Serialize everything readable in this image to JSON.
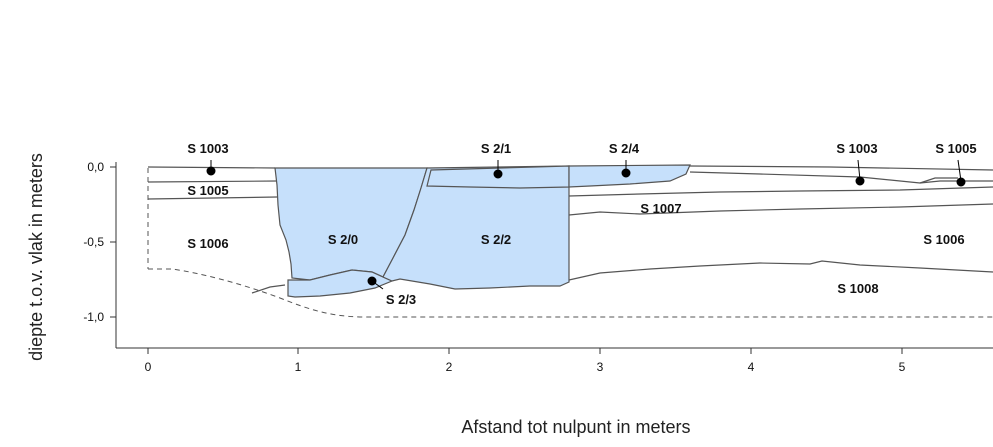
{
  "axes": {
    "x_title": "Afstand tot nulpunt in meters",
    "y_title": "diepte t.o.v. vlak in meters",
    "x_ticks": [
      {
        "value": 0,
        "label": "0"
      },
      {
        "value": 1,
        "label": "1"
      },
      {
        "value": 2,
        "label": "2"
      },
      {
        "value": 3,
        "label": "3"
      },
      {
        "value": 4,
        "label": "4"
      },
      {
        "value": 5,
        "label": "5"
      }
    ],
    "y_ticks": [
      {
        "value": 0,
        "label": "0,0"
      },
      {
        "value": -0.5,
        "label": "-0,5"
      },
      {
        "value": -1.0,
        "label": "-1,0"
      }
    ]
  },
  "units": {
    "s1003_left": "S 1003",
    "s21": "S 2/1",
    "s24": "S 2/4",
    "s1003_right": "S 1003",
    "s1005_right": "S 1005",
    "s1005_left": "S 1005",
    "s1006_left": "S 1006",
    "s20": "S 2/0",
    "s22": "S 2/2",
    "s1007": "S 1007",
    "s1006_right": "S 1006",
    "s23": "S 2/3",
    "s1008": "S 1008"
  },
  "colors": {
    "fill": "#c6e0fb",
    "line": "#555555",
    "point": "#000000"
  }
}
